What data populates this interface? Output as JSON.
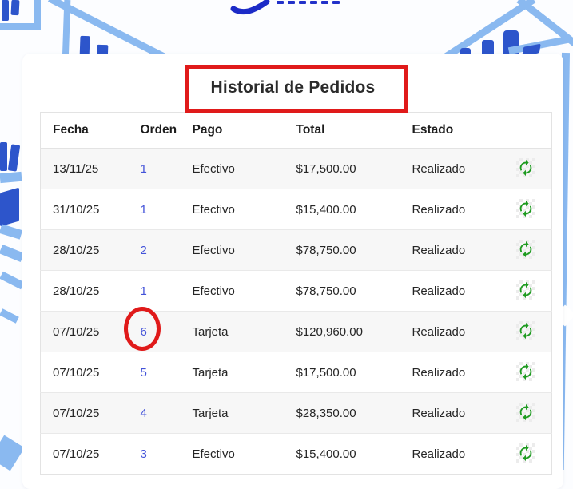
{
  "header": {
    "title": "Historial de Pedidos"
  },
  "table": {
    "columns": [
      "Fecha",
      "Orden",
      "Pago",
      "Total",
      "Estado",
      ""
    ],
    "rows": [
      {
        "fecha": "13/11/25",
        "orden": "1",
        "pago": "Efectivo",
        "total": "$17,500.00",
        "estado": "Realizado"
      },
      {
        "fecha": "31/10/25",
        "orden": "1",
        "pago": "Efectivo",
        "total": "$15,400.00",
        "estado": "Realizado"
      },
      {
        "fecha": "28/10/25",
        "orden": "2",
        "pago": "Efectivo",
        "total": "$78,750.00",
        "estado": "Realizado"
      },
      {
        "fecha": "28/10/25",
        "orden": "1",
        "pago": "Efectivo",
        "total": "$78,750.00",
        "estado": "Realizado"
      },
      {
        "fecha": "07/10/25",
        "orden": "6",
        "pago": "Tarjeta",
        "total": "$120,960.00",
        "estado": "Realizado",
        "annotated": true
      },
      {
        "fecha": "07/10/25",
        "orden": "5",
        "pago": "Tarjeta",
        "total": "$17,500.00",
        "estado": "Realizado"
      },
      {
        "fecha": "07/10/25",
        "orden": "4",
        "pago": "Tarjeta",
        "total": "$28,350.00",
        "estado": "Realizado"
      },
      {
        "fecha": "07/10/25",
        "orden": "3",
        "pago": "Efectivo",
        "total": "$15,400.00",
        "estado": "Realizado"
      }
    ],
    "row_action_icon": "refresh-icon"
  },
  "annotations": {
    "box_highlight_target": "Historial de Pedidos",
    "circle_highlight_target": "6",
    "color": "#e01a1a"
  },
  "colors": {
    "link_blue": "#4353d9",
    "refresh_green": "#1d9b1f",
    "bg_light_blue": "#8ab9f0",
    "bg_dark_blue": "#2d55cb",
    "row_stripe": "#f7f7f7"
  }
}
